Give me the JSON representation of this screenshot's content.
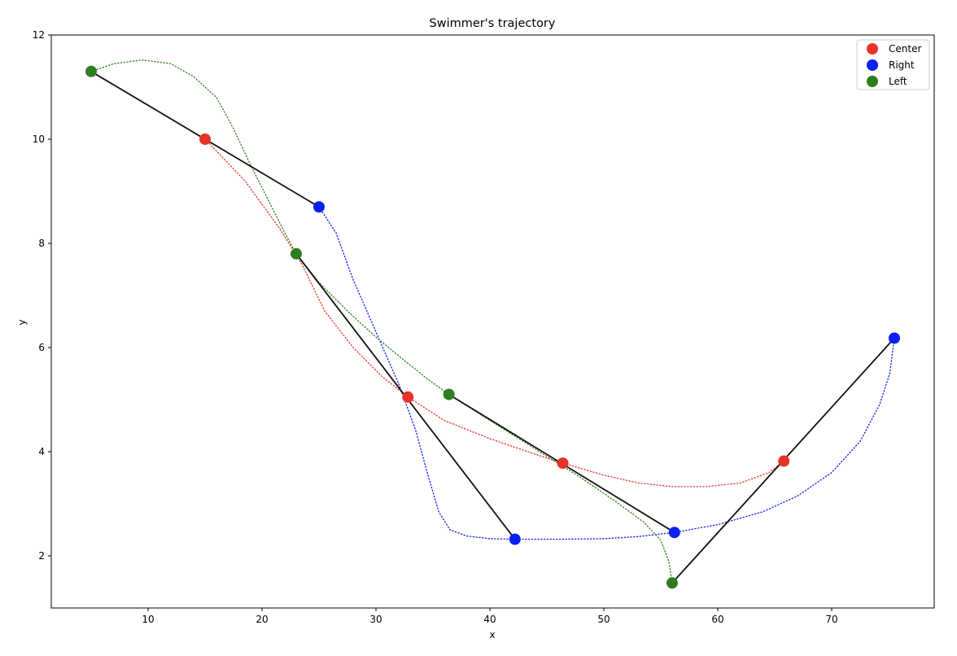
{
  "chart_data": {
    "type": "scatter",
    "title": "Swimmer's trajectory",
    "xlabel": "x",
    "ylabel": "y",
    "xlim": [
      1.5,
      79
    ],
    "ylim": [
      1.0,
      12.0
    ],
    "xticks": [
      10,
      20,
      30,
      40,
      50,
      60,
      70
    ],
    "yticks": [
      2,
      4,
      6,
      8,
      10,
      12
    ],
    "grid": false,
    "legend_position": "top-right",
    "legend": [
      "Center",
      "Right",
      "Left"
    ],
    "series": [
      {
        "name": "Center",
        "color": "#e8332a",
        "points": [
          [
            15.0,
            10.0
          ],
          [
            32.8,
            5.05
          ],
          [
            46.4,
            3.78
          ],
          [
            65.8,
            3.82
          ]
        ],
        "path": [
          [
            15.0,
            10.0
          ],
          [
            18.5,
            9.2
          ],
          [
            21.5,
            8.3
          ],
          [
            23.5,
            7.6
          ],
          [
            25.5,
            6.7
          ],
          [
            28,
            6.0
          ],
          [
            30.5,
            5.45
          ],
          [
            32.8,
            5.05
          ],
          [
            36,
            4.6
          ],
          [
            40,
            4.25
          ],
          [
            44,
            3.95
          ],
          [
            46.4,
            3.78
          ],
          [
            50,
            3.55
          ],
          [
            53,
            3.4
          ],
          [
            56,
            3.33
          ],
          [
            59,
            3.33
          ],
          [
            62,
            3.4
          ],
          [
            64.5,
            3.6
          ],
          [
            65.8,
            3.82
          ]
        ]
      },
      {
        "name": "Right",
        "color": "#0a1ff5",
        "points": [
          [
            25.0,
            8.7
          ],
          [
            42.2,
            2.32
          ],
          [
            56.2,
            2.45
          ],
          [
            75.5,
            6.18
          ]
        ],
        "path": [
          [
            25.0,
            8.7
          ],
          [
            26.5,
            8.2
          ],
          [
            28,
            7.3
          ],
          [
            30,
            6.3
          ],
          [
            32,
            5.3
          ],
          [
            33.5,
            4.4
          ],
          [
            34.5,
            3.6
          ],
          [
            35.5,
            2.85
          ],
          [
            36.5,
            2.5
          ],
          [
            38,
            2.38
          ],
          [
            40,
            2.33
          ],
          [
            42.2,
            2.32
          ],
          [
            46,
            2.32
          ],
          [
            50,
            2.33
          ],
          [
            53,
            2.37
          ],
          [
            56.2,
            2.45
          ],
          [
            60,
            2.6
          ],
          [
            64,
            2.85
          ],
          [
            67,
            3.15
          ],
          [
            70,
            3.6
          ],
          [
            72.5,
            4.2
          ],
          [
            74.2,
            4.9
          ],
          [
            75.1,
            5.5
          ],
          [
            75.5,
            6.18
          ]
        ]
      },
      {
        "name": "Left",
        "color": "#2e7d1f",
        "points": [
          [
            5.0,
            11.3
          ],
          [
            23.0,
            7.8
          ],
          [
            36.4,
            5.1
          ],
          [
            56.0,
            1.48
          ]
        ],
        "path": [
          [
            5.0,
            11.3
          ],
          [
            7,
            11.45
          ],
          [
            9.5,
            11.52
          ],
          [
            12,
            11.45
          ],
          [
            14,
            11.2
          ],
          [
            16,
            10.8
          ],
          [
            17.5,
            10.2
          ],
          [
            19,
            9.5
          ],
          [
            20.5,
            8.85
          ],
          [
            22,
            8.2
          ],
          [
            23.0,
            7.8
          ],
          [
            25,
            7.25
          ],
          [
            27.5,
            6.7
          ],
          [
            30,
            6.2
          ],
          [
            32.5,
            5.75
          ],
          [
            34.5,
            5.4
          ],
          [
            36.4,
            5.1
          ],
          [
            40,
            4.6
          ],
          [
            44,
            4.05
          ],
          [
            48,
            3.5
          ],
          [
            51,
            3.05
          ],
          [
            53.5,
            2.65
          ],
          [
            55,
            2.3
          ],
          [
            55.7,
            1.9
          ],
          [
            56.0,
            1.48
          ]
        ]
      }
    ],
    "segments": [
      {
        "from": [
          5.0,
          11.3
        ],
        "to": [
          25.0,
          8.7
        ]
      },
      {
        "from": [
          23.0,
          7.8
        ],
        "to": [
          42.2,
          2.32
        ]
      },
      {
        "from": [
          36.4,
          5.1
        ],
        "to": [
          56.2,
          2.45
        ]
      },
      {
        "from": [
          56.0,
          1.48
        ],
        "to": [
          75.5,
          6.18
        ]
      }
    ]
  }
}
